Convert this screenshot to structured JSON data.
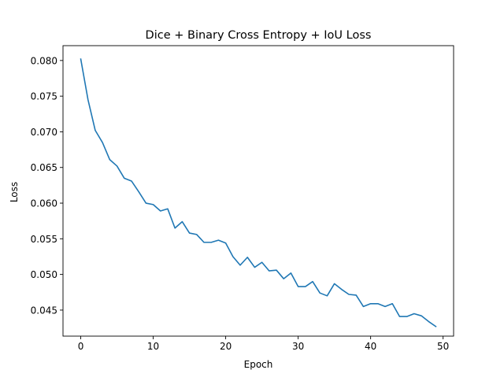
{
  "chart_data": {
    "type": "line",
    "title": "Dice + Binary Cross Entropy + IoU Loss",
    "xlabel": "Epoch",
    "ylabel": "Loss",
    "xlim": [
      -2.45,
      51.45
    ],
    "ylim": [
      0.04135,
      0.08208
    ],
    "x_ticks": [
      0,
      10,
      20,
      30,
      40,
      50
    ],
    "x_tick_labels": [
      "0",
      "10",
      "20",
      "30",
      "40",
      "50"
    ],
    "y_ticks": [
      0.045,
      0.05,
      0.055,
      0.06,
      0.065,
      0.07,
      0.075,
      0.08
    ],
    "y_tick_labels": [
      "0.045",
      "0.050",
      "0.055",
      "0.060",
      "0.065",
      "0.070",
      "0.075",
      "0.080"
    ],
    "grid": false,
    "legend": "none",
    "line_color": "#1f77b4",
    "x": [
      0,
      1,
      2,
      3,
      4,
      5,
      6,
      7,
      8,
      9,
      10,
      11,
      12,
      13,
      14,
      15,
      16,
      17,
      18,
      19,
      20,
      21,
      22,
      23,
      24,
      25,
      26,
      27,
      28,
      29,
      30,
      31,
      32,
      33,
      34,
      35,
      36,
      37,
      38,
      39,
      40,
      41,
      42,
      43,
      44,
      45,
      46,
      47,
      48,
      49
    ],
    "series": [
      {
        "values": [
          0.0802,
          0.0745,
          0.0702,
          0.0685,
          0.0661,
          0.0652,
          0.0635,
          0.0631,
          0.0616,
          0.06,
          0.0598,
          0.0589,
          0.0592,
          0.0565,
          0.0574,
          0.0558,
          0.0556,
          0.0545,
          0.0545,
          0.0548,
          0.0544,
          0.0525,
          0.0513,
          0.0524,
          0.051,
          0.0517,
          0.0505,
          0.0506,
          0.0494,
          0.0502,
          0.0483,
          0.0483,
          0.049,
          0.0474,
          0.047,
          0.0487,
          0.0479,
          0.0472,
          0.0471,
          0.0455,
          0.0459,
          0.0459,
          0.0455,
          0.0459,
          0.0441,
          0.0441,
          0.0445,
          0.0442,
          0.0434,
          0.0427
        ]
      }
    ]
  }
}
